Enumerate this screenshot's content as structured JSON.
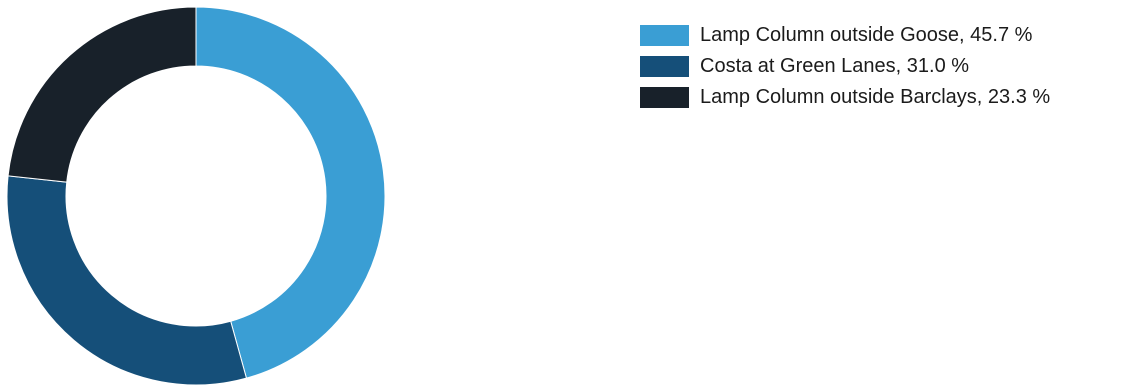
{
  "chart_data": {
    "type": "pie",
    "style": "donut",
    "title": "",
    "series": [
      {
        "name": "Lamp Column outside Goose",
        "value": 45.7,
        "label": "Lamp Column outside Goose, 45.7 %",
        "color": "#3a9ed4"
      },
      {
        "name": "Costa at Green Lanes",
        "value": 31.0,
        "label": "Costa at Green Lanes, 31.0 %",
        "color": "#154f79"
      },
      {
        "name": "Lamp Column outside Barclays",
        "value": 23.3,
        "label": "Lamp Column outside Barclays, 23.3 %",
        "color": "#18212a"
      }
    ],
    "start_angle_deg": 90,
    "direction": "clockwise",
    "legend": "top-right"
  }
}
